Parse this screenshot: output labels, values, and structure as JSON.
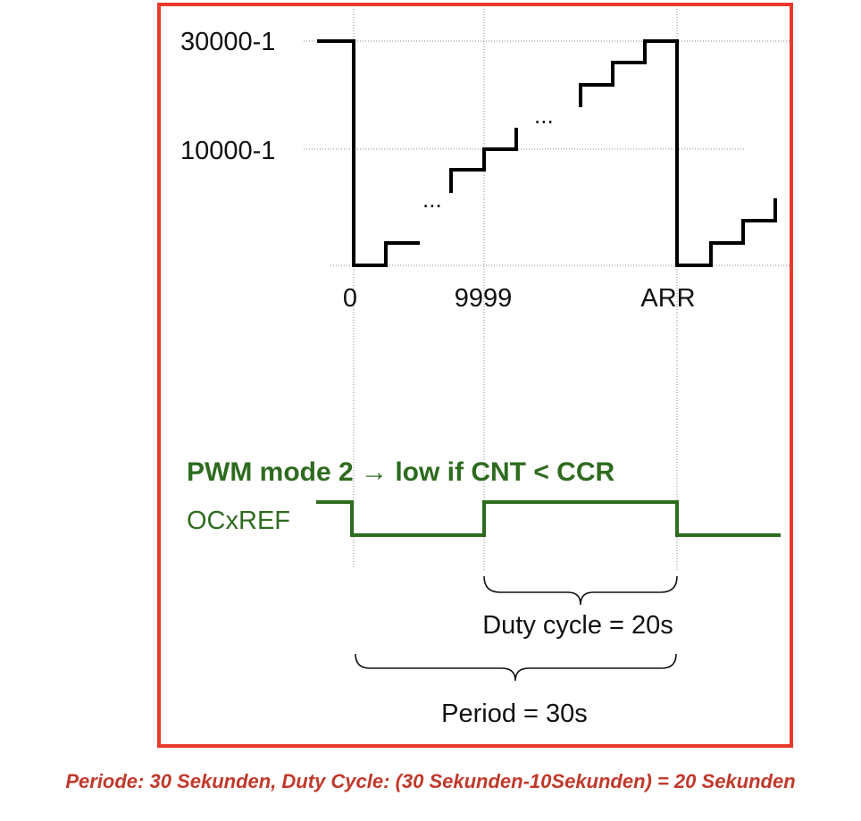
{
  "y_axis": {
    "top_label": "30000-1",
    "mid_label": "10000-1"
  },
  "x_axis": {
    "zero_label": "0",
    "ccr_label": "9999",
    "arr_label": "ARR"
  },
  "ellipsis": {
    "lower": "...",
    "upper": "..."
  },
  "pwm": {
    "mode_title": "PWM mode 2 → low if CNT < CCR",
    "signal_label": "OCxREF",
    "color": "#2e6b1f"
  },
  "braces": {
    "duty_label": "Duty cycle = 20s",
    "period_label": "Period = 30s"
  },
  "frame_color": "#e8392b",
  "caption": "Periode: 30 Sekunden, Duty Cycle: (30 Sekunden-10Sekunden) = 20 Sekunden"
}
